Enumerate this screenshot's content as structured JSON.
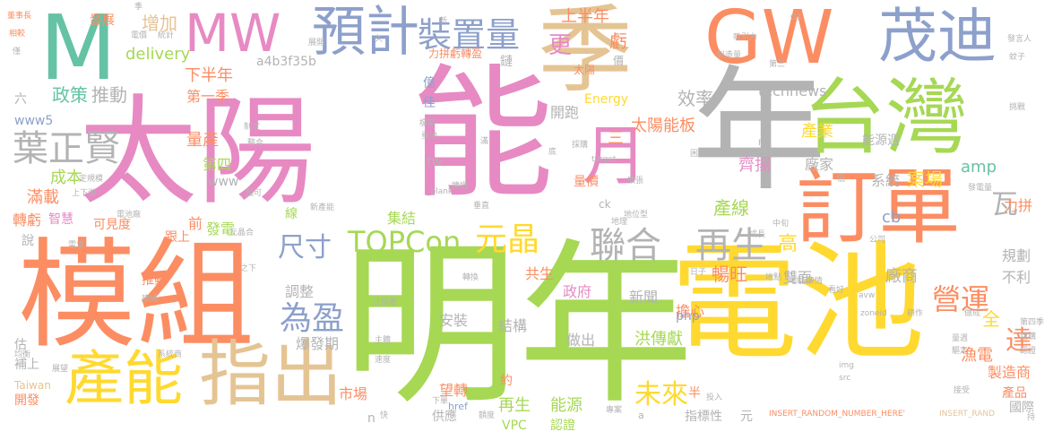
{
  "palette": {
    "pink": "#e78ac3",
    "green": "#a6d854",
    "orange": "#fc8d62",
    "yellow": "#ffd92f",
    "gray": "#b3b3b3",
    "blue": "#8da0cb",
    "teal": "#66c2a5",
    "tan": "#e5c494"
  },
  "words": {
    "taiyang": "太陽",
    "neng": "能",
    "mingnian": "明年",
    "mozu": "模組",
    "dianchi": "電池",
    "nian": "年",
    "ji": "季",
    "taiwan": "台灣",
    "gw": "GW",
    "m": "M",
    "mw": "MW",
    "maodi": "茂迪",
    "dingdan": "訂單",
    "zhichu": "指出",
    "channeng": "產能",
    "yuji": "預計",
    "zhuangzhiliang": "裝置量",
    "yue": "月",
    "yezhengxian": "葉正賢",
    "topcon": "TOPCon",
    "yuanjing": "元晶",
    "lianhe": "聯合",
    "zaisheng": "再生",
    "chicun": "尺寸",
    "weiying": "為盈",
    "weilai": "未來",
    "yingyun": "營運",
    "da": "達",
    "wa": "瓦",
    "delivery": "delivery",
    "zengjia": "增加",
    "shangbannian": "上半年",
    "kui": "虧",
    "geng": "更",
    "xiabannian": "下半年",
    "zhengce": "政策",
    "tuidong": "推動",
    "diyiji": "第一季",
    "technews": "technews",
    "xiaolu": "效率",
    "taiyangnengban": "太陽能板",
    "nengyuanzhou": "能源週",
    "changjia": "廠家",
    "xitong": "系統",
    "anchang": "案場",
    "qiyang": "齊揚",
    "chanye": "產業",
    "amp": "amp",
    "lipin": "力拼",
    "chanxian": "產線",
    "cb": "cb",
    "gao": "高",
    "changwang": "暢旺",
    "shuangmian": "雙面",
    "guihua": "規劃",
    "buli": "不利",
    "changshang": "廠商",
    "quan": "全",
    "yudian": "漁電",
    "zhizaoshang": "製造商",
    "chanpin": "產品",
    "guoji": "國際",
    "kaipao": "開跑",
    "chengben": "成本",
    "liangchan": "量產",
    "mangzai": "滿載",
    "disi": "第四",
    "www": "www",
    "www5": "www5",
    "liu": "六",
    "yi": "億",
    "jia": "佳",
    "tw": "tw",
    "san": "三",
    "jijie": "集結",
    "xian": "線",
    "qian": "前",
    "fadian": "發電",
    "gensang": "跟上",
    "kejiandu": "可見度",
    "zhuankui": "轉虧",
    "zhihui": "智慧",
    "shuo": "說",
    "tuidong2": "推動",
    "gongsheng": "共生",
    "zhengfu": "政府",
    "xinwen": "新聞",
    "danxin": "擔心",
    "tiaozheng": "調整",
    "baofaqi": "爆發期",
    "anzhuang": "安裝",
    "jiegou": "結構",
    "zuochu": "做出",
    "hongchuanxian": "洪傳獻",
    "php": "php",
    "gu": "估",
    "bushang": "補上",
    "kaifa": "開發",
    "shichang": "市場",
    "wangzhuan": "望轉",
    "yue2": "約",
    "zaisheng2": "再生",
    "nengyuan": "能源",
    "vpc": "VPC",
    "renzheng": "認證",
    "ban": "半",
    "yuan": "元",
    "zhibiaoxing": "指標性",
    "gongying": "供應",
    "n": "n",
    "fazhan": "發展",
    "energy": "Energy",
    "a4b3f35b": "a4b3f35b",
    "lipinzhuanying": "力拼虧轉盈",
    "lian": "鏈",
    "jiazhi": "價",
    "liangjia": "量價",
    "taiwan_en": "Taiwan",
    "ck": "ck",
    "taiyang_small": "太陽",
    "s_1": "季",
    "s_2": "電價",
    "s_3": "統計",
    "s_4": "展開",
    "s_5": "久",
    "s_6": "吸引力",
    "s_7": "製造量",
    "s_8": "第三",
    "s_9": "G1",
    "s_10": "發電量",
    "s_11": "蚊子",
    "s_12": "挑戰",
    "s_13": "制定",
    "s_14": "檔案",
    "s_15": "整合",
    "s_16": "重地",
    "s_17": "滿",
    "s_18": "採購",
    "s_19": "底",
    "s_20": "target",
    "s_21": "困難",
    "s_22": "擴張",
    "s_23": "FIT",
    "s_24": "低",
    "s_25": "定規模",
    "s_26": "上下游",
    "s_27": "圖可",
    "s_28": "_blank'",
    "s_29": "擴增",
    "s_30": "電池廠",
    "s_31": "新產能",
    "s_32": "垂直",
    "s_33": "地理",
    "s_34": "地位型",
    "s_35": "中旬",
    "s_36": "成長",
    "s_37": "公司",
    "s_38": "需求",
    "s_39": "元晶合",
    "s_40": "之下",
    "s_41": "建議",
    "s_42": "地點",
    "s_43": "轉換",
    "s_44": "江部署",
    "s_45": "日子",
    "s_46": "地幅",
    "s_47": "陳情",
    "s_48": "看好",
    "s_49": "avw",
    "s_50": "耕作",
    "s_51": "做成",
    "s_52": "第四季",
    "s_53": "zoneid",
    "s_54": "主體",
    "s_55": "量週",
    "s_56": "建構",
    "s_57": "驅定",
    "s_58": "認證",
    "s_59": "img",
    "s_60": "src",
    "s_61": "接受",
    "s_62": "投入",
    "s_63": "專案",
    "s_64": "速度",
    "s_65": "展望",
    "s_66": "系統商",
    "s_67": "均衡",
    "s_68": "下單",
    "s_69": "快",
    "s_70": "額度",
    "s_71": "href",
    "s_72": "a",
    "s_73": "INSERT_RANDOM_NUMBER_HERE'",
    "s_74": "INSERT_RAND",
    "s_75": "持",
    "s_76": "董事長",
    "s_77": "相較",
    "s_78": "僅",
    "s_79": "發言人",
    "s_80": "新"
  }
}
